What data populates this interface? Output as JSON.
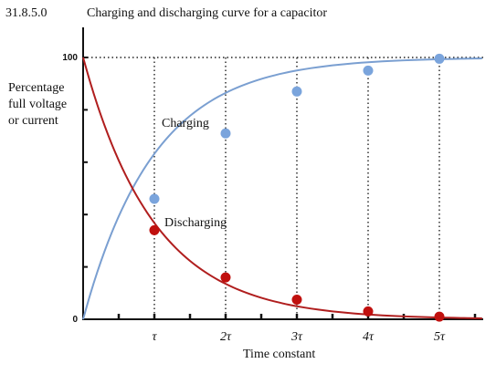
{
  "figure_id": "31.8.5.0",
  "chart_data": {
    "type": "line",
    "title": "Charging and discharging curve for a capacitor",
    "ylabel_lines": [
      "Percentage",
      "full voltage",
      "or current"
    ],
    "xlabel": "Time constant",
    "xlim": [
      0,
      5.6
    ],
    "ylim": [
      0,
      100
    ],
    "x_ticks": [
      {
        "value": 1,
        "label": "τ"
      },
      {
        "value": 2,
        "label": "2τ"
      },
      {
        "value": 3,
        "label": "3τ"
      },
      {
        "value": 4,
        "label": "4τ"
      },
      {
        "value": 5,
        "label": "5τ"
      }
    ],
    "y_ticks": [
      {
        "value": 0,
        "label": "0"
      },
      {
        "value": 100,
        "label": "100"
      }
    ],
    "reference_line_y": 100,
    "series": [
      {
        "name": "Charging",
        "color": "#7a9fd1",
        "marker_color": "#7aa4dc",
        "points": [
          [
            1,
            46
          ],
          [
            2,
            71
          ],
          [
            3,
            87
          ],
          [
            4,
            95
          ],
          [
            5,
            99.5
          ]
        ]
      },
      {
        "name": "Discharging",
        "color": "#b01e1e",
        "marker_color": "#c0100e",
        "points": [
          [
            1,
            34
          ],
          [
            2,
            16
          ],
          [
            3,
            7.5
          ],
          [
            4,
            3
          ],
          [
            5,
            1
          ]
        ]
      }
    ]
  }
}
